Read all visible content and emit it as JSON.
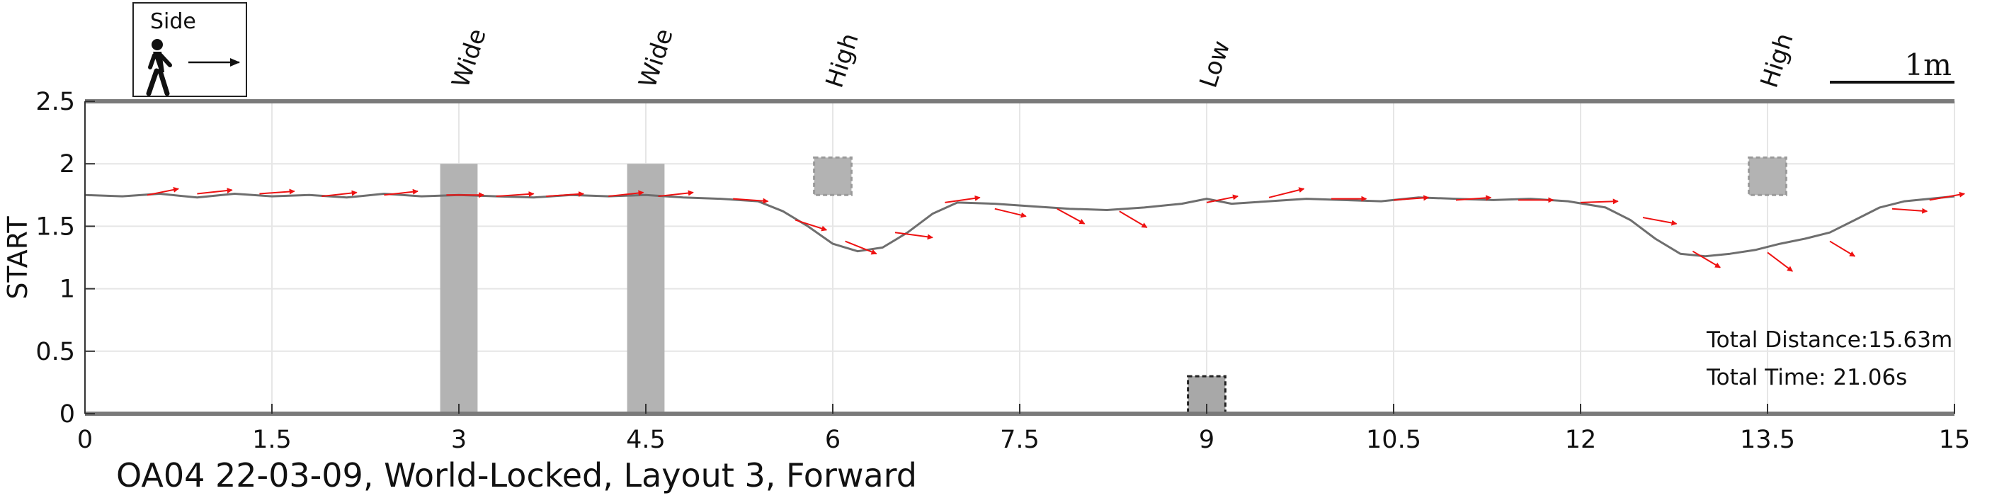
{
  "caption": "OA04 22-03-09, World-Locked, Layout 3, Forward",
  "legend": {
    "label": "Side"
  },
  "scale_bar": {
    "label": "1m",
    "length_m": 1
  },
  "stats": {
    "distance": "Total Distance:15.63m",
    "time": "Total Time: 21.06s"
  },
  "colors": {
    "path": "#6e6e6e",
    "arrow": "#ee1111",
    "obstacle": "#b3b3b3",
    "grid": "#e6e6e6",
    "axis": "#7a7a7a"
  },
  "chart_data": {
    "type": "line",
    "xlabel": "",
    "ylabel": "START",
    "xlim": [
      0,
      15
    ],
    "ylim": [
      0,
      2.5
    ],
    "xticks": [
      0,
      1.5,
      3,
      4.5,
      6,
      7.5,
      9,
      10.5,
      12,
      13.5,
      15
    ],
    "yticks": [
      0,
      0.5,
      1,
      1.5,
      2,
      2.5
    ],
    "xtick_labels": [
      "0",
      "1.5",
      "3",
      "4.5",
      "6",
      "7.5",
      "9",
      "10.5",
      "12",
      "13.5",
      "15"
    ],
    "ytick_labels": [
      "0",
      "0.5",
      "1",
      "1.5",
      "2",
      "2.5"
    ],
    "grid": true,
    "path": {
      "x": [
        0,
        0.3,
        0.6,
        0.9,
        1.2,
        1.5,
        1.8,
        2.1,
        2.4,
        2.7,
        3.0,
        3.3,
        3.6,
        3.9,
        4.2,
        4.5,
        4.8,
        5.1,
        5.4,
        5.6,
        5.8,
        6.0,
        6.2,
        6.4,
        6.6,
        6.8,
        7.0,
        7.3,
        7.6,
        7.9,
        8.2,
        8.5,
        8.8,
        9.0,
        9.2,
        9.5,
        9.8,
        10.1,
        10.4,
        10.7,
        11.0,
        11.3,
        11.6,
        11.9,
        12.2,
        12.4,
        12.6,
        12.8,
        13.0,
        13.2,
        13.4,
        13.6,
        13.8,
        14.0,
        14.2,
        14.4,
        14.6,
        14.8,
        15.0
      ],
      "y": [
        1.75,
        1.74,
        1.76,
        1.73,
        1.76,
        1.74,
        1.75,
        1.73,
        1.76,
        1.74,
        1.75,
        1.74,
        1.73,
        1.75,
        1.74,
        1.75,
        1.73,
        1.72,
        1.7,
        1.62,
        1.5,
        1.36,
        1.3,
        1.33,
        1.45,
        1.6,
        1.69,
        1.68,
        1.66,
        1.64,
        1.63,
        1.65,
        1.68,
        1.72,
        1.68,
        1.7,
        1.72,
        1.71,
        1.7,
        1.73,
        1.72,
        1.71,
        1.72,
        1.7,
        1.65,
        1.55,
        1.4,
        1.28,
        1.26,
        1.28,
        1.31,
        1.36,
        1.4,
        1.45,
        1.55,
        1.65,
        1.7,
        1.72,
        1.74
      ]
    },
    "arrows": [
      {
        "x": 0.5,
        "y": 1.75,
        "dx": 0.25,
        "dy": 0.05
      },
      {
        "x": 0.9,
        "y": 1.76,
        "dx": 0.28,
        "dy": 0.03
      },
      {
        "x": 1.4,
        "y": 1.76,
        "dx": 0.28,
        "dy": 0.02
      },
      {
        "x": 1.9,
        "y": 1.74,
        "dx": 0.28,
        "dy": 0.03
      },
      {
        "x": 2.4,
        "y": 1.75,
        "dx": 0.27,
        "dy": 0.03
      },
      {
        "x": 2.9,
        "y": 1.75,
        "dx": 0.3,
        "dy": 0.0
      },
      {
        "x": 3.3,
        "y": 1.74,
        "dx": 0.3,
        "dy": 0.02
      },
      {
        "x": 3.7,
        "y": 1.74,
        "dx": 0.3,
        "dy": 0.02
      },
      {
        "x": 4.2,
        "y": 1.74,
        "dx": 0.28,
        "dy": 0.03
      },
      {
        "x": 4.6,
        "y": 1.74,
        "dx": 0.28,
        "dy": 0.03
      },
      {
        "x": 5.2,
        "y": 1.72,
        "dx": 0.28,
        "dy": -0.02
      },
      {
        "x": 5.7,
        "y": 1.55,
        "dx": 0.25,
        "dy": -0.08
      },
      {
        "x": 6.1,
        "y": 1.38,
        "dx": 0.25,
        "dy": -0.1
      },
      {
        "x": 6.5,
        "y": 1.45,
        "dx": 0.3,
        "dy": -0.04
      },
      {
        "x": 6.9,
        "y": 1.69,
        "dx": 0.28,
        "dy": 0.04
      },
      {
        "x": 7.3,
        "y": 1.64,
        "dx": 0.25,
        "dy": -0.06
      },
      {
        "x": 7.8,
        "y": 1.64,
        "dx": 0.22,
        "dy": -0.12
      },
      {
        "x": 8.3,
        "y": 1.62,
        "dx": 0.22,
        "dy": -0.13
      },
      {
        "x": 9.0,
        "y": 1.69,
        "dx": 0.25,
        "dy": 0.05
      },
      {
        "x": 9.5,
        "y": 1.73,
        "dx": 0.28,
        "dy": 0.07
      },
      {
        "x": 10.0,
        "y": 1.72,
        "dx": 0.28,
        "dy": 0.0
      },
      {
        "x": 10.5,
        "y": 1.71,
        "dx": 0.28,
        "dy": 0.02
      },
      {
        "x": 11.0,
        "y": 1.71,
        "dx": 0.28,
        "dy": 0.02
      },
      {
        "x": 11.5,
        "y": 1.71,
        "dx": 0.28,
        "dy": 0.0
      },
      {
        "x": 12.0,
        "y": 1.69,
        "dx": 0.3,
        "dy": 0.01
      },
      {
        "x": 12.5,
        "y": 1.57,
        "dx": 0.27,
        "dy": -0.05
      },
      {
        "x": 12.9,
        "y": 1.3,
        "dx": 0.22,
        "dy": -0.13
      },
      {
        "x": 13.5,
        "y": 1.29,
        "dx": 0.2,
        "dy": -0.15
      },
      {
        "x": 14.0,
        "y": 1.38,
        "dx": 0.2,
        "dy": -0.12
      },
      {
        "x": 14.5,
        "y": 1.64,
        "dx": 0.28,
        "dy": -0.02
      },
      {
        "x": 14.8,
        "y": 1.71,
        "dx": 0.28,
        "dy": 0.05
      }
    ],
    "obstacles": [
      {
        "label": "Wide",
        "x": 3.0,
        "x0": 2.85,
        "x1": 3.15,
        "y0": 0,
        "y1": 2.0,
        "style": "solid"
      },
      {
        "label": "Wide",
        "x": 4.5,
        "x0": 4.35,
        "x1": 4.65,
        "y0": 0,
        "y1": 2.0,
        "style": "solid"
      },
      {
        "label": "High",
        "x": 6.0,
        "x0": 5.85,
        "x1": 6.15,
        "y0": 1.75,
        "y1": 2.05,
        "style": "dashed"
      },
      {
        "label": "Low",
        "x": 9.0,
        "x0": 8.85,
        "x1": 9.15,
        "y0": 0,
        "y1": 0.3,
        "style": "dashed"
      },
      {
        "label": "High",
        "x": 13.5,
        "x0": 13.35,
        "x1": 13.65,
        "y0": 1.75,
        "y1": 2.05,
        "style": "dashed"
      }
    ]
  }
}
